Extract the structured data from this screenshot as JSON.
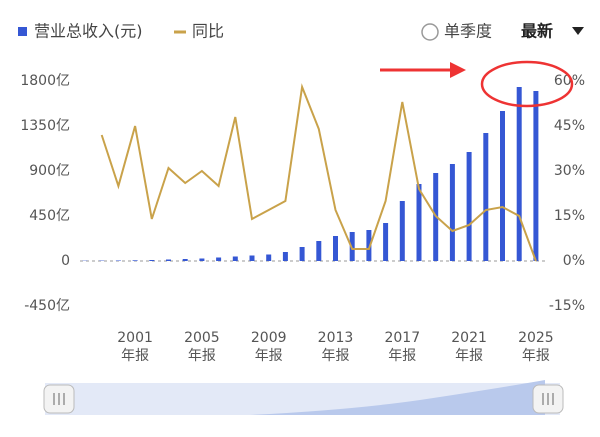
{
  "chart_data": {
    "type": "bar_line",
    "legend": {
      "bar": "营业总收入(元)",
      "line": "同比"
    },
    "controls": {
      "radio": "单季度",
      "dropdown": "最新"
    },
    "categories": [
      null,
      null,
      null,
      "2001",
      null,
      null,
      null,
      "2005",
      null,
      null,
      null,
      "2009",
      null,
      null,
      null,
      "2013",
      null,
      null,
      null,
      "2017",
      null,
      null,
      null,
      "2021",
      null,
      null,
      null,
      "2025"
    ],
    "x_label_suffix": "年报",
    "series": [
      {
        "name": "营业总收入(元)",
        "color": "#3557d4",
        "kind": "bar",
        "values": [
          3,
          4,
          5,
          7,
          10,
          15,
          20,
          25,
          35,
          45,
          55,
          65,
          90,
          140,
          200,
          250,
          290,
          310,
          380,
          600,
          770,
          880,
          970,
          1090,
          1280,
          1500,
          1740,
          1700
        ]
      },
      {
        "name": "同比",
        "color": "#c9a24a",
        "kind": "line",
        "axis": "y2",
        "values": [
          null,
          42,
          25,
          45,
          14,
          31,
          26,
          30,
          25,
          48,
          14,
          17,
          20,
          58,
          44,
          17,
          4,
          4,
          20,
          53,
          24,
          15,
          10,
          12,
          17,
          18,
          15,
          0
        ]
      }
    ],
    "ylim": [
      -450,
      1800
    ],
    "yticks": [
      {
        "value": 1800,
        "label": "1800亿"
      },
      {
        "value": 1350,
        "label": "1350亿"
      },
      {
        "value": 900,
        "label": "900亿"
      },
      {
        "value": 450,
        "label": "450亿"
      },
      0,
      {
        "value": -450,
        "label": "-450亿"
      }
    ],
    "y2lim": [
      -15,
      60
    ],
    "y2ticks": [
      {
        "value": 60,
        "label": "60%"
      },
      {
        "value": 45,
        "label": "45%"
      },
      {
        "value": 30,
        "label": "30%"
      },
      {
        "value": 15,
        "label": "15%"
      },
      {
        "value": 0,
        "label": "0%"
      },
      {
        "value": -15,
        "label": "-15%"
      }
    ]
  }
}
